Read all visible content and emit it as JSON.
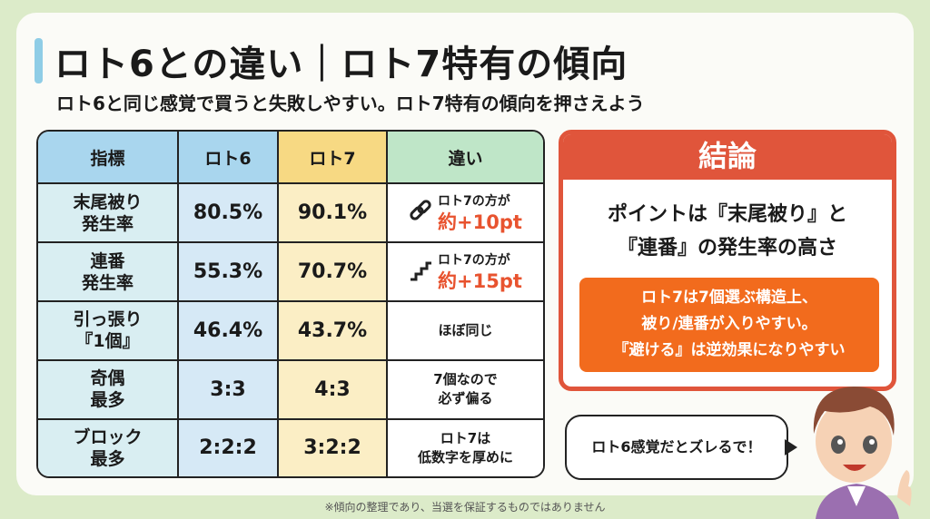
{
  "title": "ロト6との違い｜ロト7特有の傾向",
  "subtitle": "ロト6と同じ感覚で買うと失敗しやすい。ロト7特有の傾向を押さえよう",
  "table": {
    "headers": [
      "指標",
      "ロト6",
      "ロト7",
      "違い"
    ],
    "rows": [
      {
        "metric": "末尾被り\n発生率",
        "loto6": "80.5%",
        "loto7": "90.1%",
        "diff_icon": "link-icon",
        "diff_text": "ロト7の方が",
        "diff_big": "約+10pt"
      },
      {
        "metric": "連番\n発生率",
        "loto6": "55.3%",
        "loto7": "70.7%",
        "diff_icon": "stairs-icon",
        "diff_text": "ロト7の方が",
        "diff_big": "約+15pt"
      },
      {
        "metric": "引っ張り\n『1個』",
        "loto6": "46.4%",
        "loto7": "43.7%",
        "diff_text": "ほぼ同じ"
      },
      {
        "metric": "奇偶\n最多",
        "loto6": "3:3",
        "loto7": "4:3",
        "diff_text": "7個なので\n必ず偏る"
      },
      {
        "metric": "ブロック\n最多",
        "loto6": "2:2:2",
        "loto7": "3:2:2",
        "diff_text": "ロト7は\n低数字を厚めに"
      }
    ]
  },
  "conclusion": {
    "heading": "結論",
    "main": "ポイントは『末尾被り』と\n『連番』の発生率の高さ",
    "box": "ロト7は7個選ぶ構造上、\n被り/連番が入りやすい。\n『避ける』は逆効果になりやすい"
  },
  "speech": "ロト6感覚だとズレるで！",
  "footnote": "※傾向の整理であり、当選を保証するものではありません",
  "colors": {
    "accent_red": "#e0553b",
    "orange": "#f26b1d",
    "loto6": "#a9d6ee",
    "loto7": "#f7d983",
    "diff": "#bfe6c8"
  }
}
